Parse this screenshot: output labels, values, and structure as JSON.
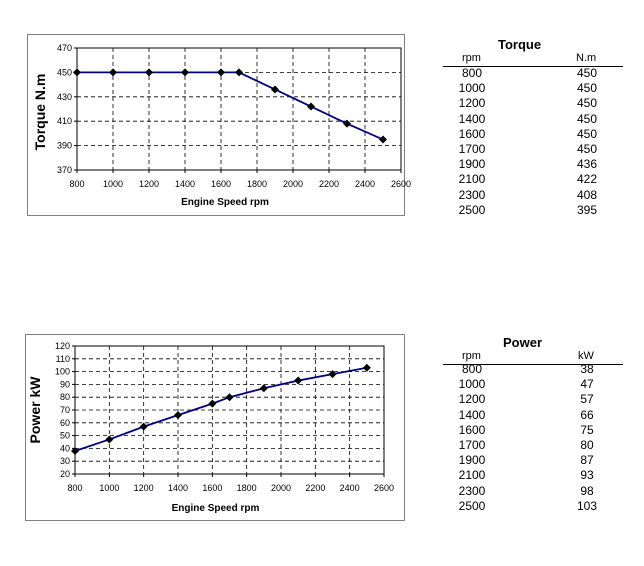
{
  "chart_data": [
    {
      "type": "line",
      "title": "",
      "xlabel": "Engine Speed rpm",
      "ylabel": "Torque  N.m",
      "xlim": [
        800,
        2600
      ],
      "ylim": [
        370,
        470
      ],
      "x_ticks": [
        800,
        1000,
        1200,
        1400,
        1600,
        1800,
        2000,
        2200,
        2400,
        2600
      ],
      "y_ticks": [
        370,
        390,
        410,
        430,
        450,
        470
      ],
      "grid": true,
      "series": [
        {
          "x": [
            800,
            1000,
            1200,
            1400,
            1600,
            1700,
            1900,
            2100,
            2300,
            2500
          ],
          "values": [
            450,
            450,
            450,
            450,
            450,
            450,
            436,
            422,
            408,
            395
          ]
        }
      ]
    },
    {
      "type": "line",
      "title": "",
      "xlabel": "Engine Speed rpm",
      "ylabel": "Power  kW",
      "xlim": [
        800,
        2600
      ],
      "ylim": [
        20,
        120
      ],
      "x_ticks": [
        800,
        1000,
        1200,
        1400,
        1600,
        1800,
        2000,
        2200,
        2400,
        2600
      ],
      "y_ticks": [
        20,
        30,
        40,
        50,
        60,
        70,
        80,
        90,
        100,
        110,
        120
      ],
      "grid": true,
      "series": [
        {
          "x": [
            800,
            1000,
            1200,
            1400,
            1600,
            1700,
            1900,
            2100,
            2300,
            2500
          ],
          "values": [
            38,
            47,
            57,
            66,
            75,
            80,
            87,
            93,
            98,
            103
          ]
        }
      ]
    }
  ],
  "colors": {
    "line": "#000080",
    "marker": "#000000",
    "grid": "#000000"
  },
  "tables": {
    "torque": {
      "title": "Torque",
      "col1": "rpm",
      "col2": "N.m",
      "rows": [
        [
          "800",
          "450"
        ],
        [
          "1000",
          "450"
        ],
        [
          "1200",
          "450"
        ],
        [
          "1400",
          "450"
        ],
        [
          "1600",
          "450"
        ],
        [
          "1700",
          "450"
        ],
        [
          "1900",
          "436"
        ],
        [
          "2100",
          "422"
        ],
        [
          "2300",
          "408"
        ],
        [
          "2500",
          "395"
        ]
      ]
    },
    "power": {
      "title": "Power",
      "col1": "rpm",
      "col2": "kW",
      "rows": [
        [
          "800",
          "38"
        ],
        [
          "1000",
          "47"
        ],
        [
          "1200",
          "57"
        ],
        [
          "1400",
          "66"
        ],
        [
          "1600",
          "75"
        ],
        [
          "1700",
          "80"
        ],
        [
          "1900",
          "87"
        ],
        [
          "2100",
          "93"
        ],
        [
          "2300",
          "98"
        ],
        [
          "2500",
          "103"
        ]
      ]
    }
  }
}
